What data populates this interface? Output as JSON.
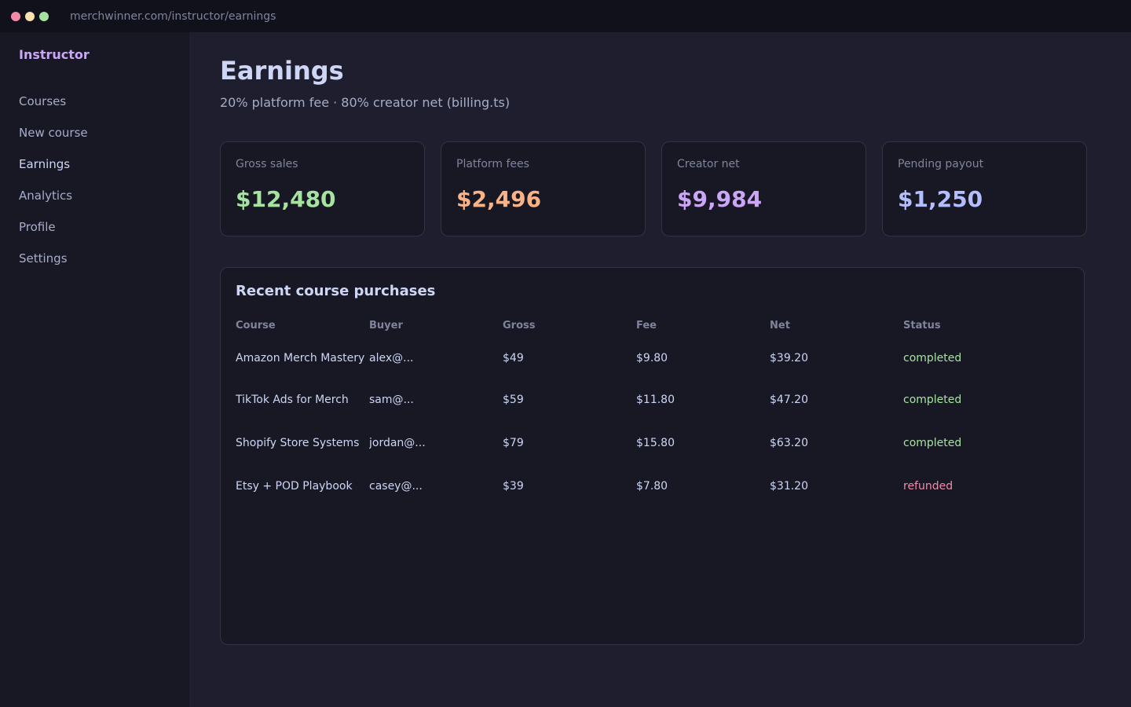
{
  "browser": {
    "url": "merchwinner.com/instructor/earnings",
    "dot_colors": [
      "#f38ba8",
      "#f9e2af",
      "#a6e3a1"
    ]
  },
  "sidebar": {
    "brand": "Instructor",
    "items": [
      {
        "label": "Courses"
      },
      {
        "label": "New course"
      },
      {
        "label": "Earnings",
        "active": true
      },
      {
        "label": "Analytics"
      },
      {
        "label": "Profile"
      },
      {
        "label": "Settings"
      }
    ]
  },
  "header": {
    "title": "Earnings",
    "subtitle": "20% platform fee · 80% creator net (billing.ts)"
  },
  "stats": [
    {
      "label": "Gross sales",
      "value": "$12,480",
      "color": "#a6e3a1"
    },
    {
      "label": "Platform fees",
      "value": "$2,496",
      "color": "#fab387"
    },
    {
      "label": "Creator net",
      "value": "$9,984",
      "color": "#cba6f7"
    },
    {
      "label": "Pending payout",
      "value": "$1,250",
      "color": "#b4befe"
    }
  ],
  "purchases": {
    "title": "Recent course purchases",
    "columns": [
      "Course",
      "Buyer",
      "Gross",
      "Fee",
      "Net",
      "Status"
    ],
    "rows": [
      {
        "course": "Amazon Merch Mastery",
        "buyer": "alex@...",
        "gross": "$49",
        "fee": "$9.80",
        "net": "$39.20",
        "status": "completed"
      },
      {
        "course": "TikTok Ads for Merch",
        "buyer": "sam@...",
        "gross": "$59",
        "fee": "$11.80",
        "net": "$47.20",
        "status": "completed"
      },
      {
        "course": "Shopify Store Systems",
        "buyer": "jordan@...",
        "gross": "$79",
        "fee": "$15.80",
        "net": "$63.20",
        "status": "completed"
      },
      {
        "course": "Etsy + POD Playbook",
        "buyer": "casey@...",
        "gross": "$39",
        "fee": "$7.80",
        "net": "$31.20",
        "status": "refunded"
      }
    ]
  }
}
